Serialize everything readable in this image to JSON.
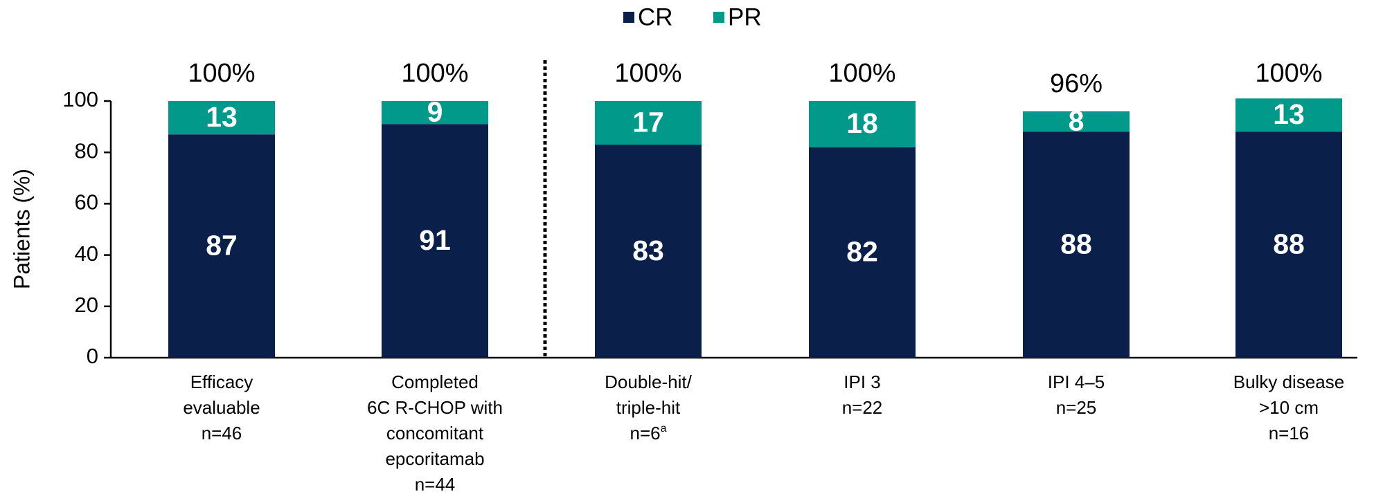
{
  "chart_data": {
    "type": "stacked_bar",
    "y_label": "Patients (%)",
    "categories": [
      [
        "Efficacy",
        "evaluable",
        "n=46"
      ],
      [
        "Completed",
        "6C R-CHOP with",
        "concomitant",
        "epcoritamab",
        "n=44"
      ],
      [
        "Double-hit/",
        "triple-hit",
        {
          "text": "n=6",
          "sup": "a"
        }
      ],
      [
        "IPI 3",
        "n=22"
      ],
      [
        "IPI 4–5",
        "n=25"
      ],
      [
        "Bulky disease",
        ">10 cm",
        "n=16"
      ]
    ],
    "series": [
      {
        "name": "CR",
        "color": "#0a1f4a",
        "values": [
          87,
          91,
          83,
          82,
          88,
          88
        ]
      },
      {
        "name": "PR",
        "color": "#00998a",
        "values": [
          13,
          9,
          17,
          18,
          8,
          13
        ]
      }
    ],
    "totals": [
      100,
      100,
      100,
      100,
      96,
      100
    ],
    "total_labels": [
      "100%",
      "100%",
      "100%",
      "100%",
      "96%",
      "100%"
    ],
    "ylim": [
      0,
      100
    ],
    "yticks": [
      0,
      20,
      40,
      60,
      80,
      100
    ],
    "legend": "top"
  }
}
